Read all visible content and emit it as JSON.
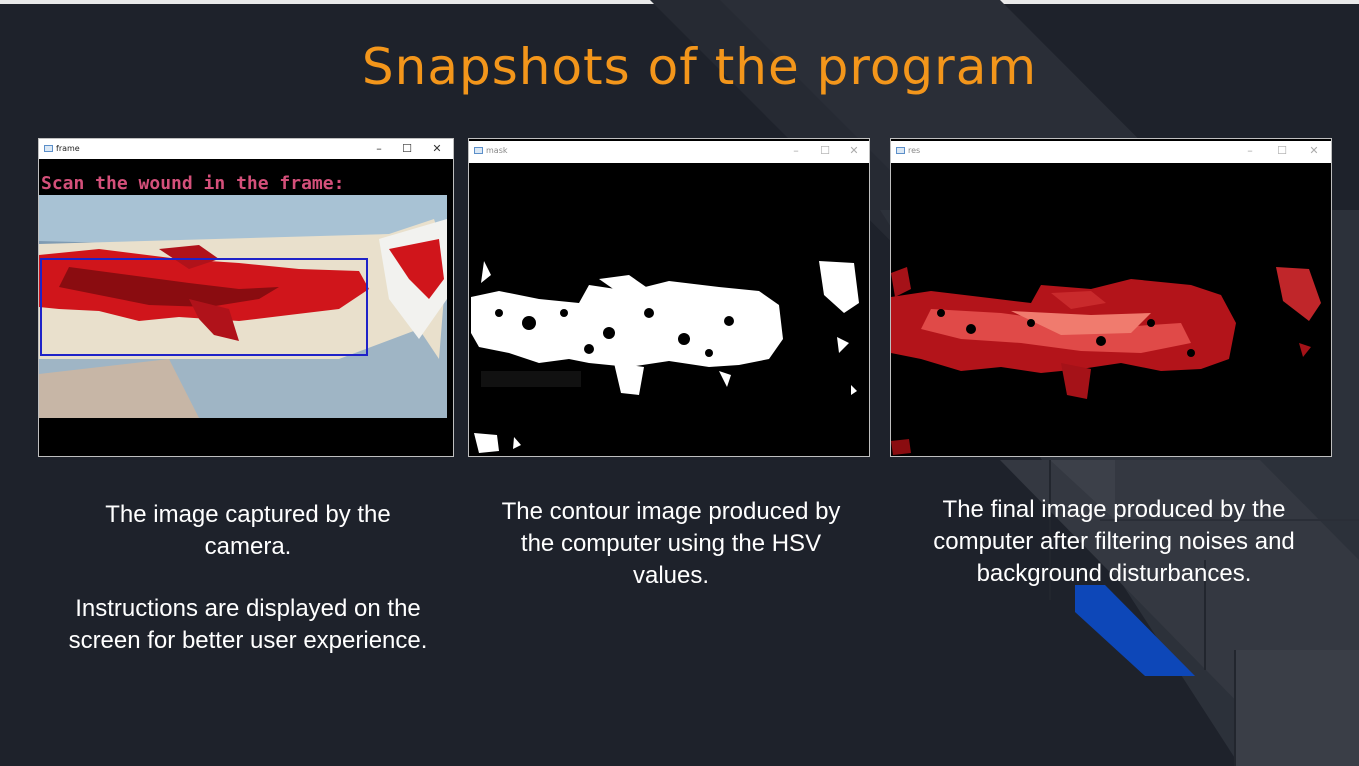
{
  "slide": {
    "title": "Snapshots of the program",
    "colors": {
      "background": "#1e222b",
      "title": "#f3961b",
      "accent_blue": "#0d47b8",
      "wound_red": "#d0151b"
    }
  },
  "windows": [
    {
      "name": "frame",
      "title": "frame",
      "overlay_text": "Scan the wound in the frame:",
      "controls": [
        "–",
        "☐",
        "✕"
      ],
      "icon": "window-app-icon"
    },
    {
      "name": "mask",
      "title": "mask",
      "controls": [
        "–",
        "☐",
        "✕"
      ],
      "icon": "window-app-icon"
    },
    {
      "name": "res",
      "title": "res",
      "controls": [
        "–",
        "☐",
        "✕"
      ],
      "icon": "window-app-icon"
    }
  ],
  "captions": {
    "frame": {
      "line1": "The image captured by the camera.",
      "line2": "Instructions are displayed on the screen for better user experience."
    },
    "mask": {
      "text": "The contour image produced by the computer using the HSV values."
    },
    "res": {
      "text": "The final image produced by the computer after filtering noises and background disturbances."
    }
  }
}
